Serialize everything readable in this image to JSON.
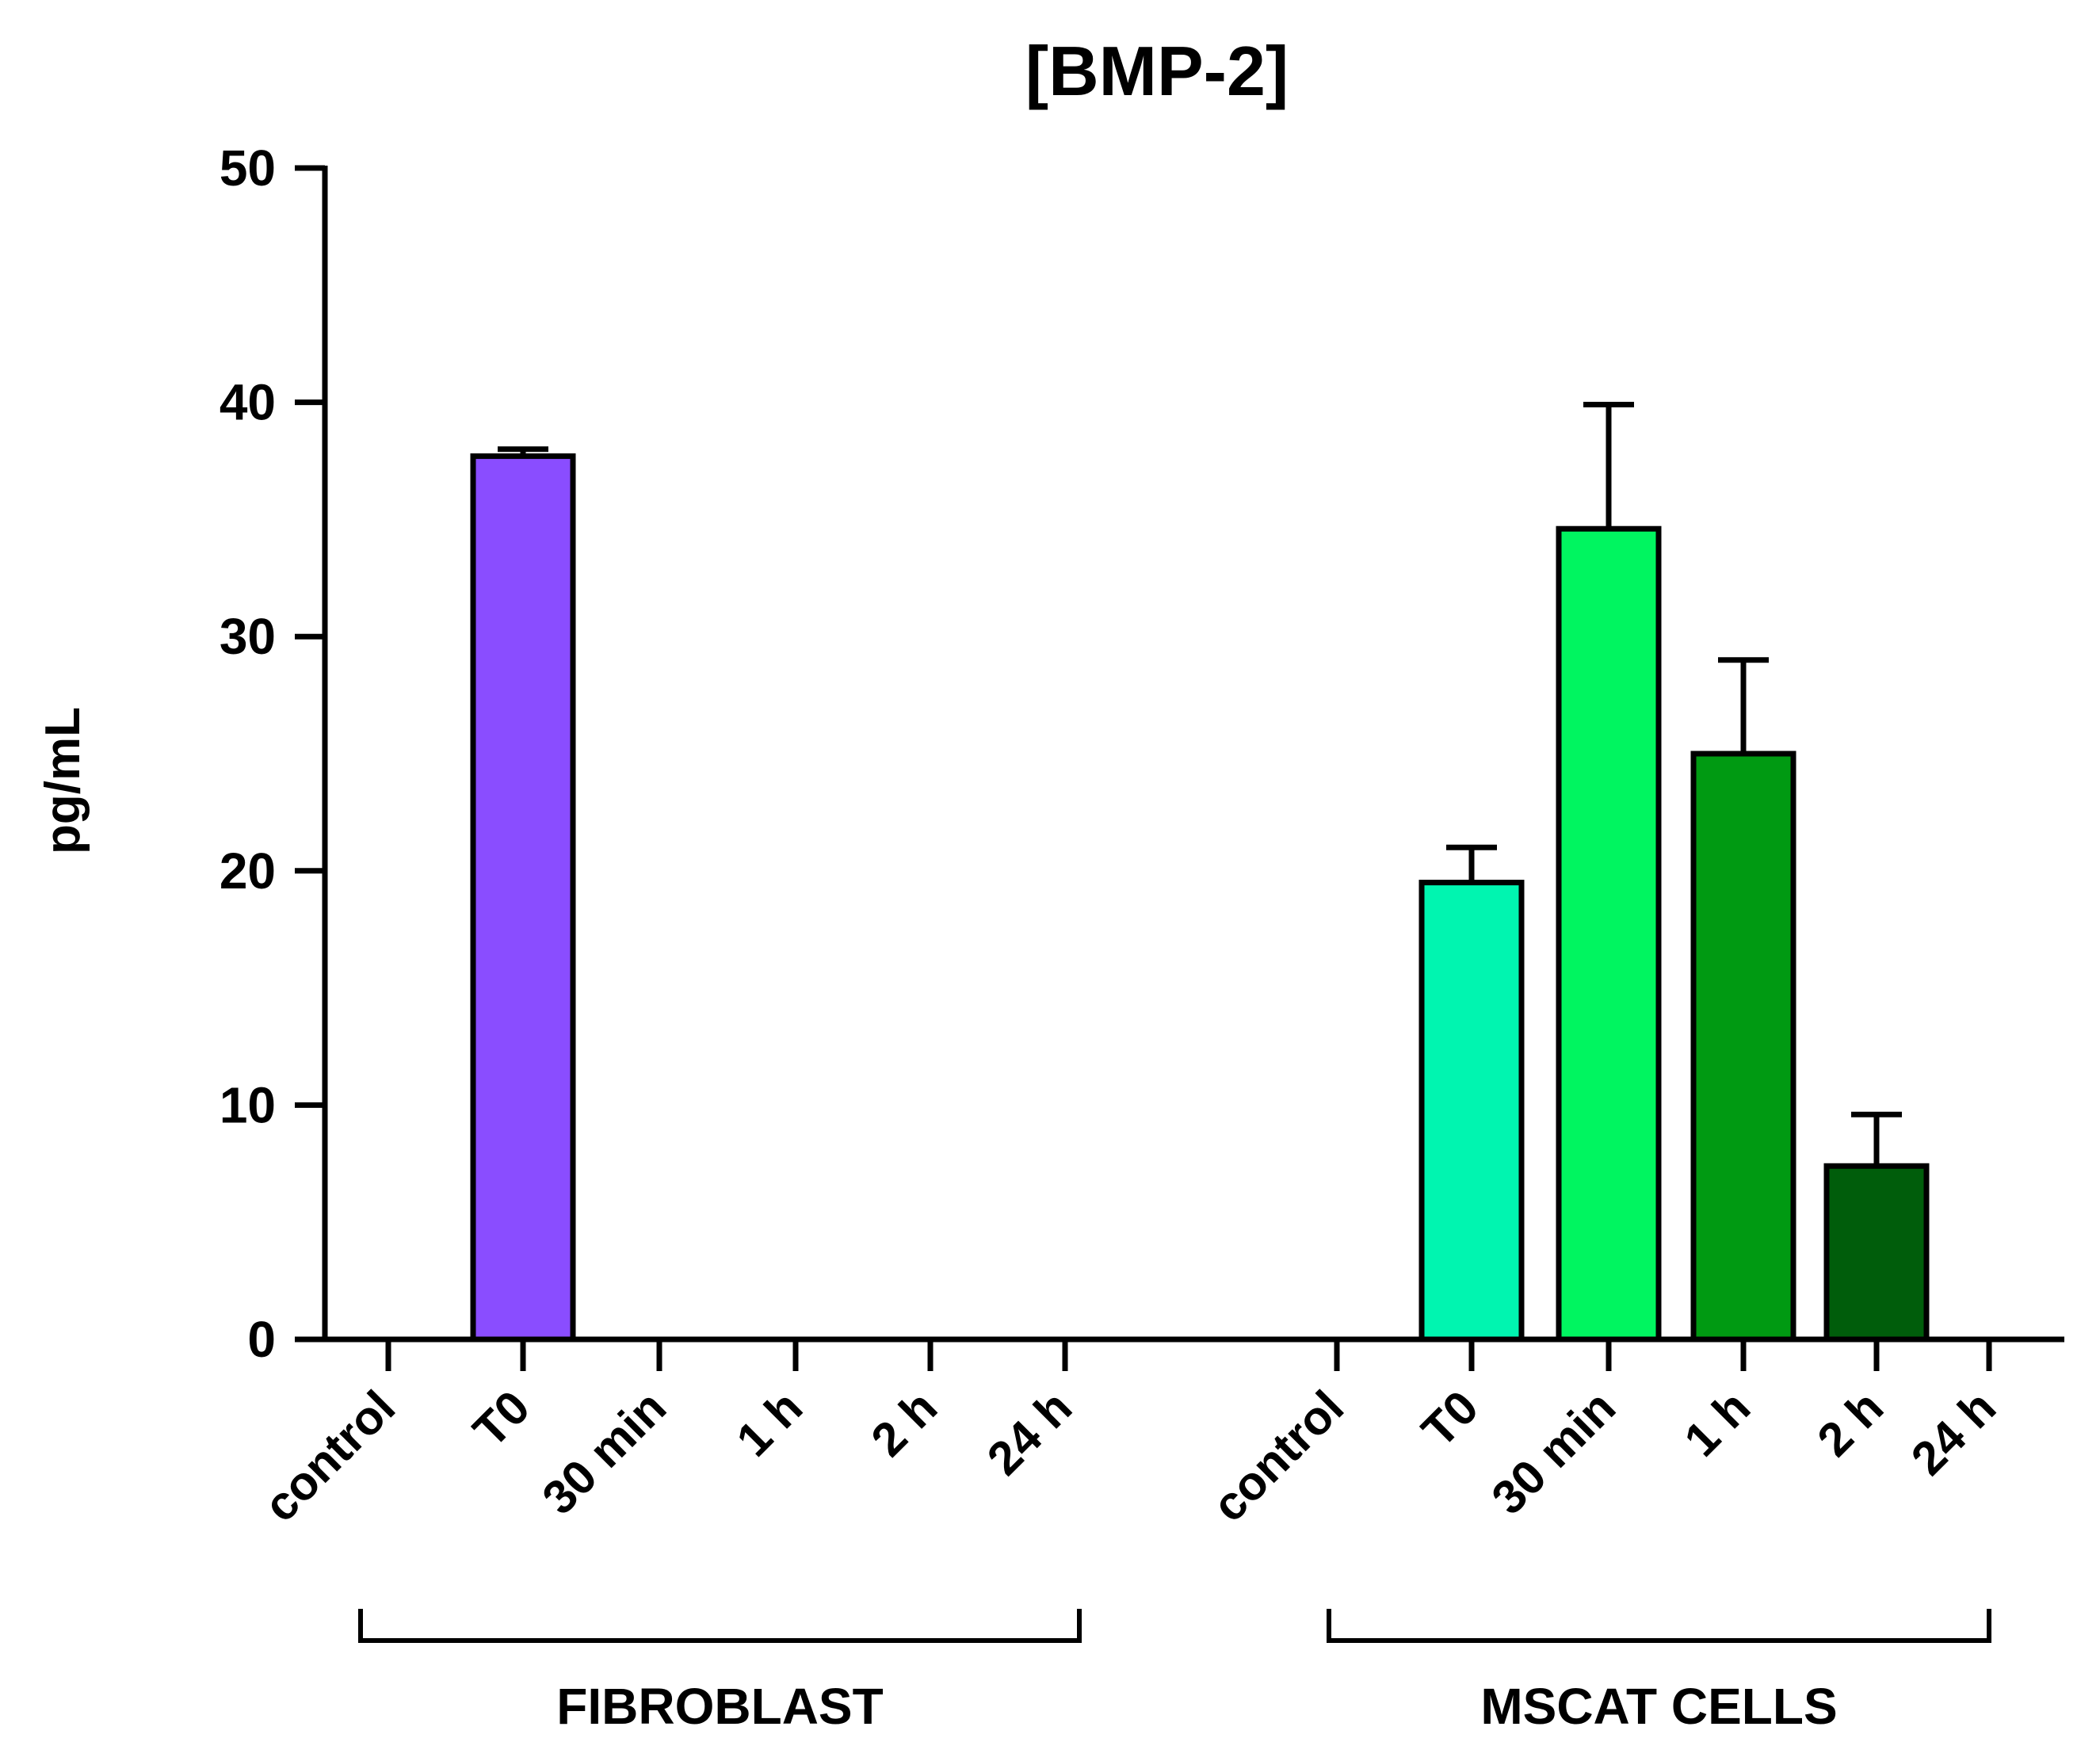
{
  "chart_data": {
    "type": "bar",
    "title": "[BMP-2]",
    "ylabel": "pg/mL",
    "xlabel": "",
    "ylim": [
      0,
      50
    ],
    "yticks": [
      0,
      10,
      20,
      30,
      40,
      50
    ],
    "grid": false,
    "legend": "none",
    "groups": [
      {
        "name": "FIBROBLAST",
        "categories": [
          "control",
          "T0",
          "30 min",
          "1 h",
          "2 h",
          "24 h"
        ],
        "values": [
          0,
          37.7,
          0,
          0,
          0,
          0
        ],
        "errors": [
          0,
          0.3,
          0,
          0,
          0,
          0
        ],
        "colors": [
          "#8a4dff",
          "#8a4dff",
          "#8a4dff",
          "#8a4dff",
          "#8a4dff",
          "#8a4dff"
        ]
      },
      {
        "name": "MSCAT CELLS",
        "categories": [
          "control",
          "T0",
          "30 min",
          "1 h",
          "2 h",
          "24 h"
        ],
        "values": [
          0,
          19.5,
          34.6,
          25.0,
          7.4,
          0
        ],
        "errors": [
          0,
          1.5,
          5.3,
          4.0,
          2.2,
          0
        ],
        "colors": [
          "#00f5b0",
          "#00f5b0",
          "#00f560",
          "#009a12",
          "#005d0b",
          "#005d0b"
        ]
      }
    ]
  }
}
